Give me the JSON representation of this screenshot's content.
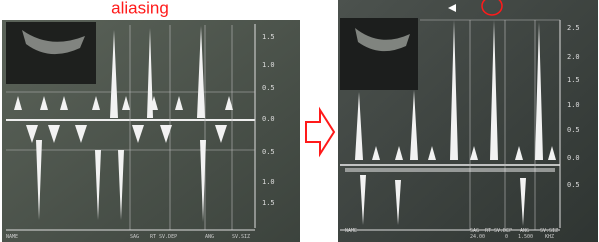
{
  "label": "aliasing",
  "panels": [
    {
      "scale": [
        "1.5",
        "1.0",
        "0.5",
        "0.0",
        "0.5",
        "1.0",
        "1.5"
      ],
      "footer": [
        "NAME",
        "SAG",
        "RT SV.DEP",
        "ANG",
        "SV.SIZ"
      ]
    },
    {
      "scale": [
        "2.5",
        "2.0",
        "1.5",
        "1.0",
        "0.5",
        "0.0",
        "0.5"
      ],
      "footer": [
        "NAME",
        "SAG",
        "RT SV.DEP",
        "ANG",
        "SV.SIZ",
        "24.00",
        "0",
        "1.500",
        "KHZ"
      ]
    }
  ]
}
